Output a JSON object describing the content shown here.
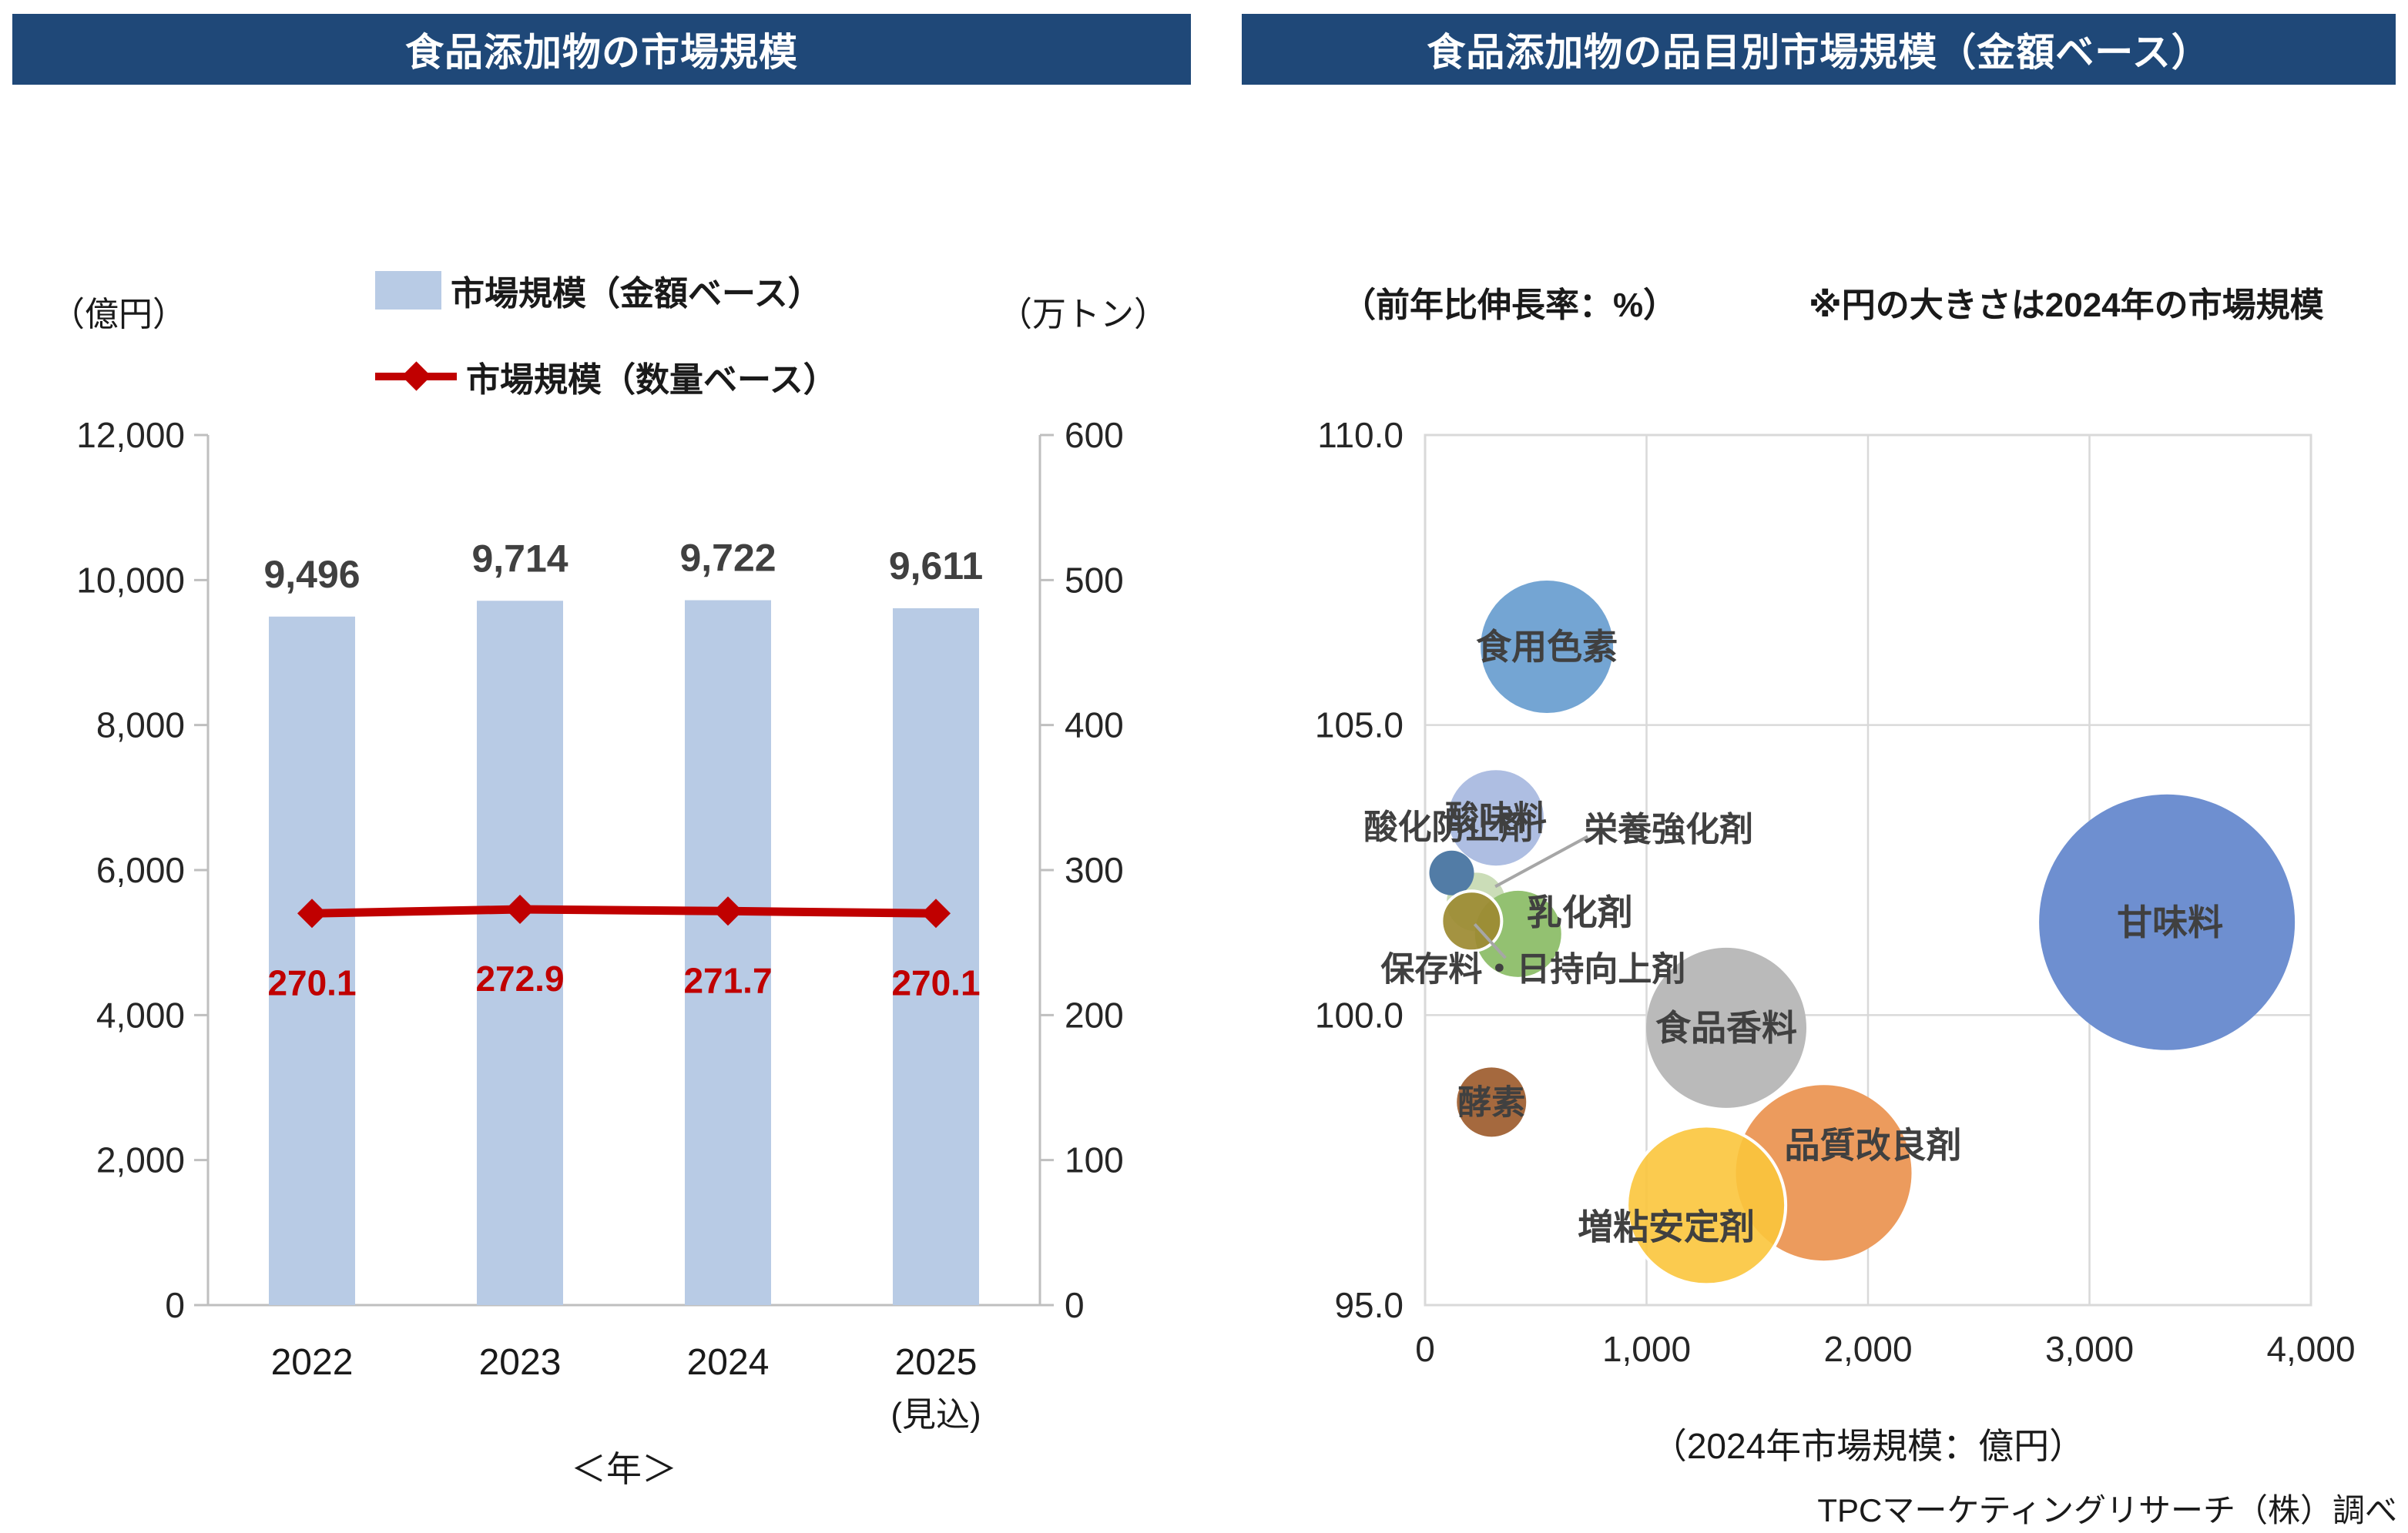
{
  "left_chart": {
    "title": "食品添加物の市場規模",
    "title_bg": "#1F4878",
    "left_axis_unit": "（億円）",
    "right_axis_unit": "（万トン）",
    "x_axis_title": "＜年＞",
    "legend": [
      {
        "label": "市場規模（金額ベース）",
        "type": "bar-swatch",
        "color": "#B8CBE5"
      },
      {
        "label": "市場規模（数量ベース）",
        "type": "line-diamond",
        "color": "#C00000"
      }
    ]
  },
  "right_chart": {
    "title": "食品添加物の品目別市場規模（金額ベース）",
    "title_bg": "#1F4878",
    "y_axis_note": "（前年比伸長率：%）",
    "bubble_size_note": "※円の大きさは2024年の市場規模",
    "x_axis_title": "（2024年市場規模：億円）"
  },
  "source_note": "TPCマーケティングリサーチ（株）調べ",
  "chart_data": [
    {
      "type": "bar",
      "subtype": "bar+line combo",
      "title": "食品添加物の市場規模",
      "categories": [
        "2022",
        "2023",
        "2024",
        "2025"
      ],
      "category_suffix": [
        "",
        "",
        "",
        "(見込)"
      ],
      "x_title": "＜年＞",
      "series": [
        {
          "name": "市場規模（金額ベース）",
          "type": "bar",
          "axis": "left",
          "color": "#B8CBE5",
          "values": [
            9496,
            9714,
            9722,
            9611
          ],
          "labels": [
            "9,496",
            "9,714",
            "9,722",
            "9,611"
          ]
        },
        {
          "name": "市場規模（数量ベース）",
          "type": "line",
          "axis": "right",
          "color": "#C00000",
          "values": [
            270.1,
            272.9,
            271.7,
            270.1
          ],
          "labels": [
            "270.1",
            "272.9",
            "271.7",
            "270.1"
          ]
        }
      ],
      "left_axis": {
        "unit": "（億円）",
        "min": 0,
        "max": 12000,
        "tick_labels": [
          "0",
          "2,000",
          "4,000",
          "6,000",
          "8,000",
          "10,000",
          "12,000"
        ]
      },
      "right_axis": {
        "unit": "（万トン）",
        "min": 0,
        "max": 600,
        "tick_labels": [
          "0",
          "100",
          "200",
          "300",
          "400",
          "500",
          "600"
        ]
      },
      "grid": false
    },
    {
      "type": "scatter",
      "subtype": "bubble",
      "title": "食品添加物の品目別市場規模（金額ベース）",
      "x_axis": {
        "title": "（2024年市場規模：億円）",
        "min": 0,
        "max": 4000,
        "tick_labels": [
          "0",
          "1,000",
          "2,000",
          "3,000",
          "4,000"
        ]
      },
      "y_axis": {
        "note": "（前年比伸長率：%）",
        "min": 95,
        "max": 110,
        "tick_labels": [
          "95.0",
          "100.0",
          "105.0",
          "110.0"
        ]
      },
      "size_note": "※円の大きさは2024年の市場規模",
      "grid": true,
      "leader_color": "#A6A6A6",
      "bubbles": [
        {
          "label": "酸味料",
          "market_size_2024": 320,
          "yoy_growth_pct": 103.4,
          "radius_px": 62,
          "color": "#AEBEE2",
          "opacity": 1,
          "stroke": null,
          "label_offset": [
            0,
            0
          ],
          "label_size": 44,
          "leader": null
        },
        {
          "label": "食用色素",
          "market_size_2024": 550,
          "yoy_growth_pct": 106.35,
          "radius_px": 86,
          "color": "#74A5D3",
          "opacity": 1,
          "stroke": null,
          "label_offset": [
            0,
            0
          ],
          "label_size": 46,
          "leader": null
        },
        {
          "label": "栄養強化剤",
          "market_size_2024": 230,
          "yoy_growth_pct": 101.95,
          "radius_px": 40,
          "color": "#CBDDB8",
          "opacity": 1,
          "stroke": "#FFFFFF",
          "label_offset": [
            250,
            -95
          ],
          "label_size": 44,
          "leader": [
            145,
            -85,
            25,
            -20
          ]
        },
        {
          "label": "酸化防止剤",
          "market_size_2024": 120,
          "yoy_growth_pct": 102.45,
          "radius_px": 29,
          "color": "#527CA6",
          "opacity": 1,
          "stroke": null,
          "label_offset": [
            -4,
            -60
          ],
          "label_size": 44,
          "leader": null
        },
        {
          "label": "乳化剤",
          "market_size_2024": 420,
          "yoy_growth_pct": 101.4,
          "radius_px": 56,
          "color": "#93C171",
          "opacity": 1,
          "stroke": null,
          "label_offset": [
            80,
            -28
          ],
          "label_size": 46,
          "leader": null
        },
        {
          "label": "保存料・日持向上剤",
          "market_size_2024": 210,
          "yoy_growth_pct": 101.62,
          "radius_px": 39,
          "color": "#9C8A31",
          "opacity": 0.92,
          "stroke": "#FFFFFF",
          "label_offset": [
            80,
            62
          ],
          "label_size": 44,
          "leader": [
            4,
            4,
            44,
            48
          ]
        },
        {
          "label": "酵素",
          "market_size_2024": 300,
          "yoy_growth_pct": 98.5,
          "radius_px": 45,
          "color": "#A5693E",
          "opacity": 1,
          "stroke": null,
          "label_offset": [
            0,
            0
          ],
          "label_size": 44,
          "leader": null
        },
        {
          "label": "食品香料",
          "market_size_2024": 1360,
          "yoy_growth_pct": 99.78,
          "radius_px": 104,
          "color": "#BABABA",
          "opacity": 1,
          "stroke": null,
          "label_offset": [
            0,
            0
          ],
          "label_size": 46,
          "leader": null
        },
        {
          "label": "品質改良剤",
          "market_size_2024": 1800,
          "yoy_growth_pct": 97.28,
          "radius_px": 114,
          "color": "#EC9B5D",
          "opacity": 1,
          "stroke": null,
          "label_offset": [
            64,
            -36
          ],
          "label_size": 46,
          "leader": null
        },
        {
          "label": "増粘安定剤",
          "market_size_2024": 1270,
          "yoy_growth_pct": 96.72,
          "radius_px": 103,
          "color": "#FBC53C",
          "opacity": 0.9,
          "stroke": "#FFFFFF",
          "label_offset": [
            -52,
            28
          ],
          "label_size": 46,
          "leader": null
        },
        {
          "label": "甘味料",
          "market_size_2024": 3350,
          "yoy_growth_pct": 101.6,
          "radius_px": 166,
          "color": "#6E8FD0",
          "opacity": 1,
          "stroke": null,
          "label_offset": [
            4,
            0
          ],
          "label_size": 46,
          "leader": null
        }
      ]
    }
  ]
}
